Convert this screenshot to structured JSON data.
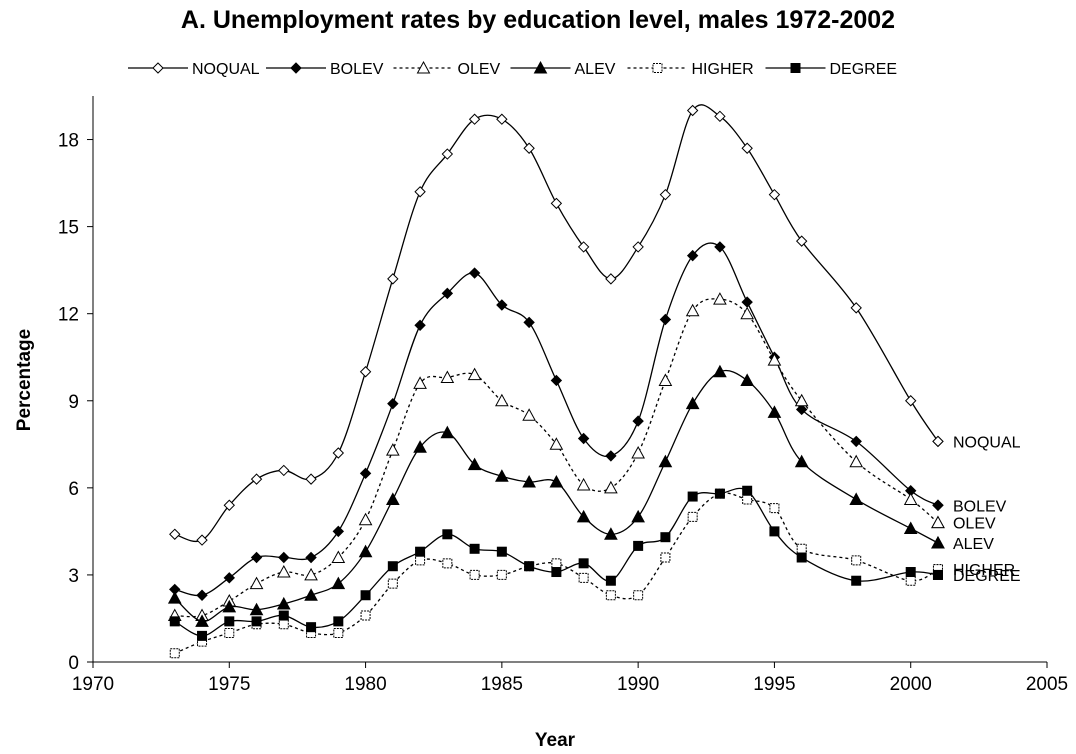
{
  "chart_data": {
    "type": "line",
    "title": "A. Unemployment rates by education level, males 1972-2002",
    "xlabel": "Year",
    "ylabel": "Percentage",
    "xlim": [
      1970,
      2005
    ],
    "ylim": [
      0,
      19.5
    ],
    "xticks": [
      1970,
      1975,
      1980,
      1985,
      1990,
      1995,
      2000,
      2005
    ],
    "yticks": [
      0,
      3,
      6,
      9,
      12,
      15,
      18
    ],
    "grid": false,
    "legend_position": "top",
    "series": [
      {
        "name": "NOQUAL",
        "marker": "open-diamond",
        "line": "solid",
        "x": [
          1973,
          1974,
          1975,
          1976,
          1977,
          1978,
          1979,
          1980,
          1981,
          1982,
          1983,
          1984,
          1985,
          1986,
          1987,
          1988,
          1989,
          1990,
          1991,
          1992,
          1993,
          1994,
          1995,
          1996,
          1998,
          2000,
          2001
        ],
        "y": [
          4.4,
          4.2,
          5.4,
          6.3,
          6.6,
          6.3,
          7.2,
          10.0,
          13.2,
          16.2,
          17.5,
          18.7,
          18.7,
          17.7,
          15.8,
          14.3,
          13.2,
          14.3,
          16.1,
          19.0,
          18.8,
          17.7,
          16.1,
          14.5,
          12.2,
          9.0,
          7.6
        ]
      },
      {
        "name": "BOLEV",
        "marker": "filled-diamond",
        "line": "solid",
        "x": [
          1973,
          1974,
          1975,
          1976,
          1977,
          1978,
          1979,
          1980,
          1981,
          1982,
          1983,
          1984,
          1985,
          1986,
          1987,
          1988,
          1989,
          1990,
          1991,
          1992,
          1993,
          1994,
          1995,
          1996,
          1998,
          2000,
          2001
        ],
        "y": [
          2.5,
          2.3,
          2.9,
          3.6,
          3.6,
          3.6,
          4.5,
          6.5,
          8.9,
          11.6,
          12.7,
          13.4,
          12.3,
          11.7,
          9.7,
          7.7,
          7.1,
          8.3,
          11.8,
          14.0,
          14.3,
          12.4,
          10.5,
          8.7,
          7.6,
          5.9,
          5.4
        ]
      },
      {
        "name": "OLEV",
        "marker": "open-triangle",
        "line": "dotted",
        "x": [
          1973,
          1974,
          1975,
          1976,
          1977,
          1978,
          1979,
          1980,
          1981,
          1982,
          1983,
          1984,
          1985,
          1986,
          1987,
          1988,
          1989,
          1990,
          1991,
          1992,
          1993,
          1994,
          1995,
          1996,
          1998,
          2000,
          2001
        ],
        "y": [
          1.6,
          1.6,
          2.1,
          2.7,
          3.1,
          3.0,
          3.6,
          4.9,
          7.3,
          9.6,
          9.8,
          9.9,
          9.0,
          8.5,
          7.5,
          6.1,
          6.0,
          7.2,
          9.7,
          12.1,
          12.5,
          12.0,
          10.4,
          9.0,
          6.9,
          5.6,
          4.8
        ]
      },
      {
        "name": "ALEV",
        "marker": "filled-triangle",
        "line": "solid",
        "x": [
          1973,
          1974,
          1975,
          1976,
          1977,
          1978,
          1979,
          1980,
          1981,
          1982,
          1983,
          1984,
          1985,
          1986,
          1987,
          1988,
          1989,
          1990,
          1991,
          1992,
          1993,
          1994,
          1995,
          1996,
          1998,
          2000,
          2001
        ],
        "y": [
          2.2,
          1.4,
          1.9,
          1.8,
          2.0,
          2.3,
          2.7,
          3.8,
          5.6,
          7.4,
          7.9,
          6.8,
          6.4,
          6.2,
          6.2,
          5.0,
          4.4,
          5.0,
          6.9,
          8.9,
          10.0,
          9.7,
          8.6,
          6.9,
          5.6,
          4.6,
          4.1
        ]
      },
      {
        "name": "HIGHER",
        "marker": "open-square",
        "line": "dotted",
        "x": [
          1973,
          1974,
          1975,
          1976,
          1977,
          1978,
          1979,
          1980,
          1981,
          1982,
          1983,
          1984,
          1985,
          1986,
          1987,
          1988,
          1989,
          1990,
          1991,
          1992,
          1993,
          1994,
          1995,
          1996,
          1998,
          2000,
          2001
        ],
        "y": [
          0.3,
          0.7,
          1.0,
          1.3,
          1.3,
          1.0,
          1.0,
          1.6,
          2.7,
          3.5,
          3.4,
          3.0,
          3.0,
          3.3,
          3.4,
          2.9,
          2.3,
          2.3,
          3.6,
          5.0,
          5.8,
          5.6,
          5.3,
          3.9,
          3.5,
          2.8,
          3.2
        ]
      },
      {
        "name": "DEGREE",
        "marker": "filled-square",
        "line": "solid",
        "x": [
          1973,
          1974,
          1975,
          1976,
          1977,
          1978,
          1979,
          1980,
          1981,
          1982,
          1983,
          1984,
          1985,
          1986,
          1987,
          1988,
          1989,
          1990,
          1991,
          1992,
          1993,
          1994,
          1995,
          1996,
          1998,
          2000,
          2001
        ],
        "y": [
          1.4,
          0.9,
          1.4,
          1.4,
          1.6,
          1.2,
          1.4,
          2.3,
          3.3,
          3.8,
          4.4,
          3.9,
          3.8,
          3.3,
          3.1,
          3.4,
          2.8,
          4.0,
          4.3,
          5.7,
          5.8,
          5.9,
          4.5,
          3.6,
          2.8,
          3.1,
          3.0
        ]
      }
    ]
  }
}
